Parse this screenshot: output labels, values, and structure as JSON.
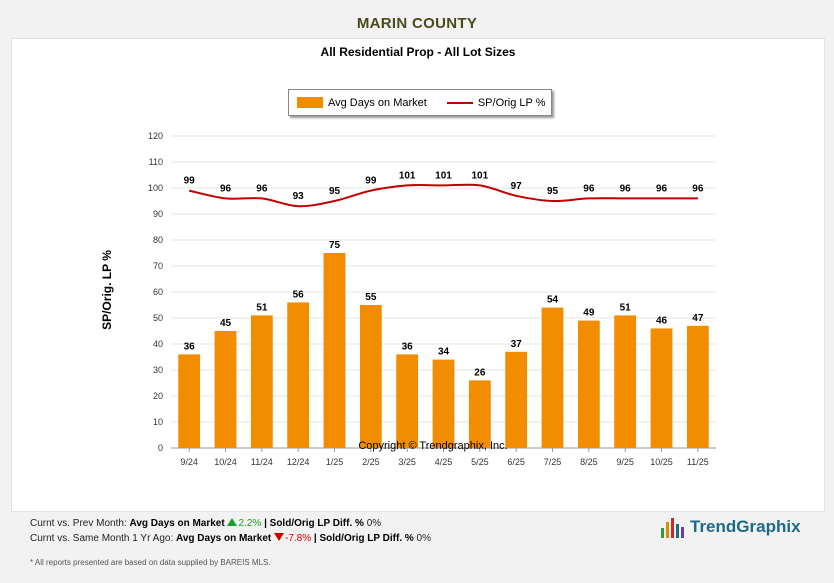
{
  "header": {
    "title": "MARIN COUNTY"
  },
  "chart_data": {
    "type": "bar",
    "title": "All Residential Prop - All Lot Sizes",
    "categories": [
      "9/24",
      "10/24",
      "11/24",
      "12/24",
      "1/25",
      "2/25",
      "3/25",
      "4/25",
      "5/25",
      "6/25",
      "7/25",
      "8/25",
      "9/25",
      "10/25",
      "11/25"
    ],
    "series": [
      {
        "name": "Avg Days on Market",
        "type": "bar",
        "color": "#F28C00",
        "values": [
          36,
          45,
          51,
          56,
          75,
          55,
          36,
          34,
          26,
          37,
          54,
          49,
          51,
          46,
          47
        ]
      },
      {
        "name": "SP/Orig LP %",
        "type": "line",
        "color": "#c00000",
        "values": [
          99,
          96,
          96,
          93,
          95,
          99,
          101,
          101,
          101,
          97,
          95,
          96,
          96,
          96,
          96
        ]
      }
    ],
    "ylabel": "SP/Orig. LP %",
    "xlabel": "",
    "ylim": [
      0,
      120
    ],
    "yticks": [
      0,
      10,
      20,
      30,
      40,
      50,
      60,
      70,
      80,
      90,
      100,
      110,
      120
    ],
    "grid": true,
    "legend_position": "top-center"
  },
  "copyright": "Copyright © Trendgraphix, Inc.",
  "footer": {
    "line1_prefix": "Curnt vs. Prev Month:",
    "line1_metric1": "Avg Days on Market",
    "line1_change1": "2.2%",
    "line1_metric2": "Sold/Orig LP Diff. %",
    "line1_change2": "0%",
    "line2_prefix": "Curnt vs. Same Month 1 Yr Ago:",
    "line2_metric1": "Avg Days on Market",
    "line2_change1": "-7.8%",
    "line2_metric2": "Sold/Orig LP Diff. %",
    "line2_change2": "0%",
    "note": "* All reports presented are based on data supplied by BAREIS MLS."
  },
  "logo": {
    "text": "TrendGraphix"
  }
}
